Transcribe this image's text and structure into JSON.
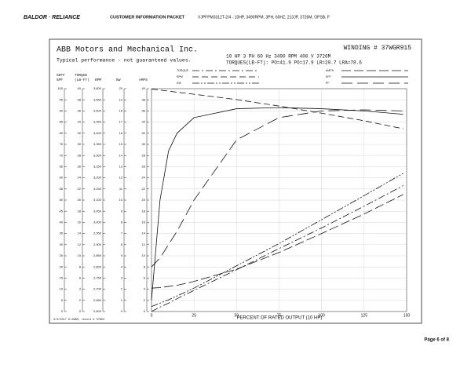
{
  "header": {
    "brand": "BALDOR · RELIANCE",
    "doc_title": "CUSTOMER INFORMATION PACKET",
    "product": "VJPFPM3312T-2/4 - 10HP, 3490RPM, 3PH, 60HZ, 213JP, 3726M, OPSB, F"
  },
  "footer": {
    "page": "Page 6 of 8"
  },
  "chart_data": {
    "type": "line",
    "title": "ABB Motors and Mechanical Inc.",
    "winding": "WINDING # 37WGR915",
    "subtitle": "Typical performance - not guaranteed values.",
    "specs": "10 HP  3 PH  60 Hz  3490 RPM  400 V  3726M",
    "torques": "TORQUES(LB-FT): PO=41.9  PO=17.9  LR=20.7  LRA=78.6",
    "note": "3/3/2017 8:29AM, record # 37853",
    "xlabel": "PERCENT OF RATED OUTPUT (10 HP)",
    "xlim": [
      0,
      150
    ],
    "xticks": [
      0,
      25,
      50,
      75,
      100,
      125,
      150
    ],
    "x": [
      0,
      5,
      10,
      15,
      25,
      50,
      75,
      100,
      125,
      148
    ],
    "axes": [
      {
        "label": "%EFF",
        "label2": "%PF",
        "ylim": [
          0,
          100
        ],
        "yticks": [
          0,
          5,
          10,
          15,
          20,
          25,
          30,
          35,
          40,
          45,
          50,
          55,
          60,
          65,
          70,
          75,
          80,
          85,
          90,
          95,
          100
        ]
      },
      {
        "label": "TORQUE",
        "label2": "(LB-FT)",
        "ylim": [
          0,
          40
        ],
        "yticks": [
          0,
          2,
          4,
          6,
          8,
          10,
          12,
          14,
          16,
          18,
          20,
          22,
          24,
          26,
          28,
          30,
          32,
          34,
          36,
          38,
          40
        ]
      },
      {
        "label2": "RPM",
        "ylim": [
          2600,
          3600
        ],
        "yticks": [
          {
            "value": 2600,
            "label": "2,600"
          },
          {
            "value": 2650,
            "label": "2,650"
          },
          {
            "value": 2700,
            "label": "2,700"
          },
          {
            "value": 2750,
            "label": "2,750"
          },
          {
            "value": 2800,
            "label": "2,800"
          },
          {
            "value": 2850,
            "label": "2,850"
          },
          {
            "value": 2900,
            "label": "2,900"
          },
          {
            "value": 2950,
            "label": "2,950"
          },
          {
            "value": 3000,
            "label": "3,000"
          },
          {
            "value": 3050,
            "label": "3,050"
          },
          {
            "value": 3100,
            "label": "3,100"
          },
          {
            "value": 3150,
            "label": "3,150"
          },
          {
            "value": 3200,
            "label": "3,200"
          },
          {
            "value": 3250,
            "label": "3,250"
          },
          {
            "value": 3300,
            "label": "3,300"
          },
          {
            "value": 3350,
            "label": "3,350"
          },
          {
            "value": 3400,
            "label": "3,400"
          },
          {
            "value": 3450,
            "label": "3,450"
          },
          {
            "value": 3500,
            "label": "3,500"
          },
          {
            "value": 3550,
            "label": "3,550"
          },
          {
            "value": 3600,
            "label": "3,600"
          }
        ]
      },
      {
        "label2": "KW",
        "ylim": [
          0,
          20
        ],
        "yticks": [
          0,
          1,
          2,
          3,
          4,
          5,
          6,
          7,
          8,
          9,
          10,
          11,
          12,
          13,
          14,
          15,
          16,
          17,
          18,
          19,
          20
        ]
      },
      {
        "label2": "AMPS",
        "ylim": [
          0,
          40
        ],
        "yticks": [
          0,
          2,
          4,
          6,
          8,
          10,
          12,
          14,
          16,
          18,
          20,
          22,
          24,
          26,
          28,
          30,
          32,
          34,
          36,
          38,
          40
        ]
      }
    ],
    "series": [
      {
        "name": "TORQUE",
        "axis": 1,
        "color": "#111111",
        "dash": "9 3 2 3",
        "values": [
          0,
          0.8,
          1.5,
          2.3,
          3.8,
          7.5,
          11.3,
          15.0,
          18.9,
          22.6
        ]
      },
      {
        "name": "RPM",
        "axis": 2,
        "color": "#111111",
        "dash": "8 4",
        "values": [
          3598,
          3594,
          3589,
          3584,
          3575,
          3551,
          3522,
          3490,
          3456,
          3420
        ]
      },
      {
        "name": "KW",
        "axis": 3,
        "color": "#111111",
        "dash": "9 2 2 2 2 2",
        "values": [
          0.45,
          0.75,
          1.05,
          1.4,
          2.1,
          4.1,
          6.1,
          8.24,
          10.4,
          12.4
        ]
      },
      {
        "name": "AMPS",
        "axis": 4,
        "color": "#111111",
        "dash": "12 4",
        "values": [
          4.2,
          4.3,
          4.5,
          4.7,
          5.4,
          7.6,
          10.6,
          14.0,
          17.5,
          21.0
        ]
      },
      {
        "name": "EFF",
        "axis": 0,
        "color": "#111111",
        "dash": "none",
        "values": [
          5,
          50,
          72,
          80,
          87,
          91,
          91.5,
          91,
          90,
          88.5
        ]
      },
      {
        "name": "PF",
        "axis": 0,
        "color": "#111111",
        "dash": "14 6",
        "values": [
          20,
          24,
          30,
          36,
          50,
          77,
          87,
          90,
          90.5,
          90
        ]
      }
    ]
  }
}
